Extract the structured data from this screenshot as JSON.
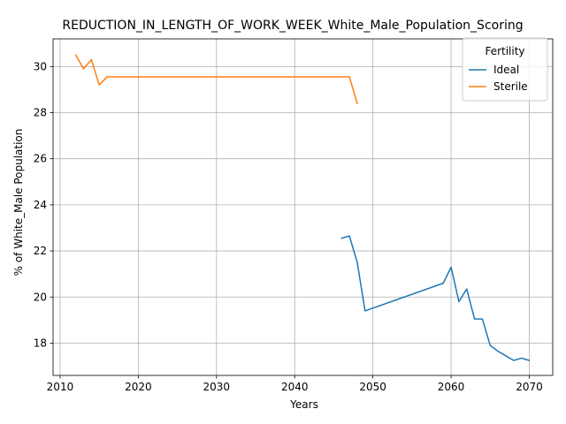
{
  "chart_data": {
    "type": "line",
    "title": "REDUCTION_IN_LENGTH_OF_WORK_WEEK_White_Male_Population_Scoring",
    "xlabel": "Years",
    "ylabel": "% of White_Male Population",
    "xlim": [
      2009.1,
      2073.0
    ],
    "ylim": [
      16.6,
      31.2
    ],
    "xticks": [
      2010,
      2020,
      2030,
      2040,
      2050,
      2060,
      2070
    ],
    "yticks": [
      18,
      20,
      22,
      24,
      26,
      28,
      30
    ],
    "grid": true,
    "legend": {
      "title": "Fertility",
      "placement": "top-right"
    },
    "series": [
      {
        "name": "Ideal",
        "color": "#1f77b4",
        "x": [
          2046,
          2047,
          2048,
          2049,
          2059,
          2060,
          2061,
          2062,
          2063,
          2064,
          2065,
          2066,
          2067,
          2068,
          2069,
          2070
        ],
        "y": [
          22.55,
          22.65,
          21.5,
          19.4,
          20.6,
          21.3,
          19.8,
          20.35,
          19.05,
          19.05,
          17.9,
          17.65,
          17.45,
          17.25,
          17.35,
          17.25
        ]
      },
      {
        "name": "Sterile",
        "color": "#ff7f0e",
        "x": [
          2012,
          2013,
          2014,
          2015,
          2016,
          2046,
          2047,
          2048
        ],
        "y": [
          30.5,
          29.9,
          30.3,
          29.2,
          29.55,
          29.55,
          29.55,
          28.4
        ]
      }
    ]
  }
}
